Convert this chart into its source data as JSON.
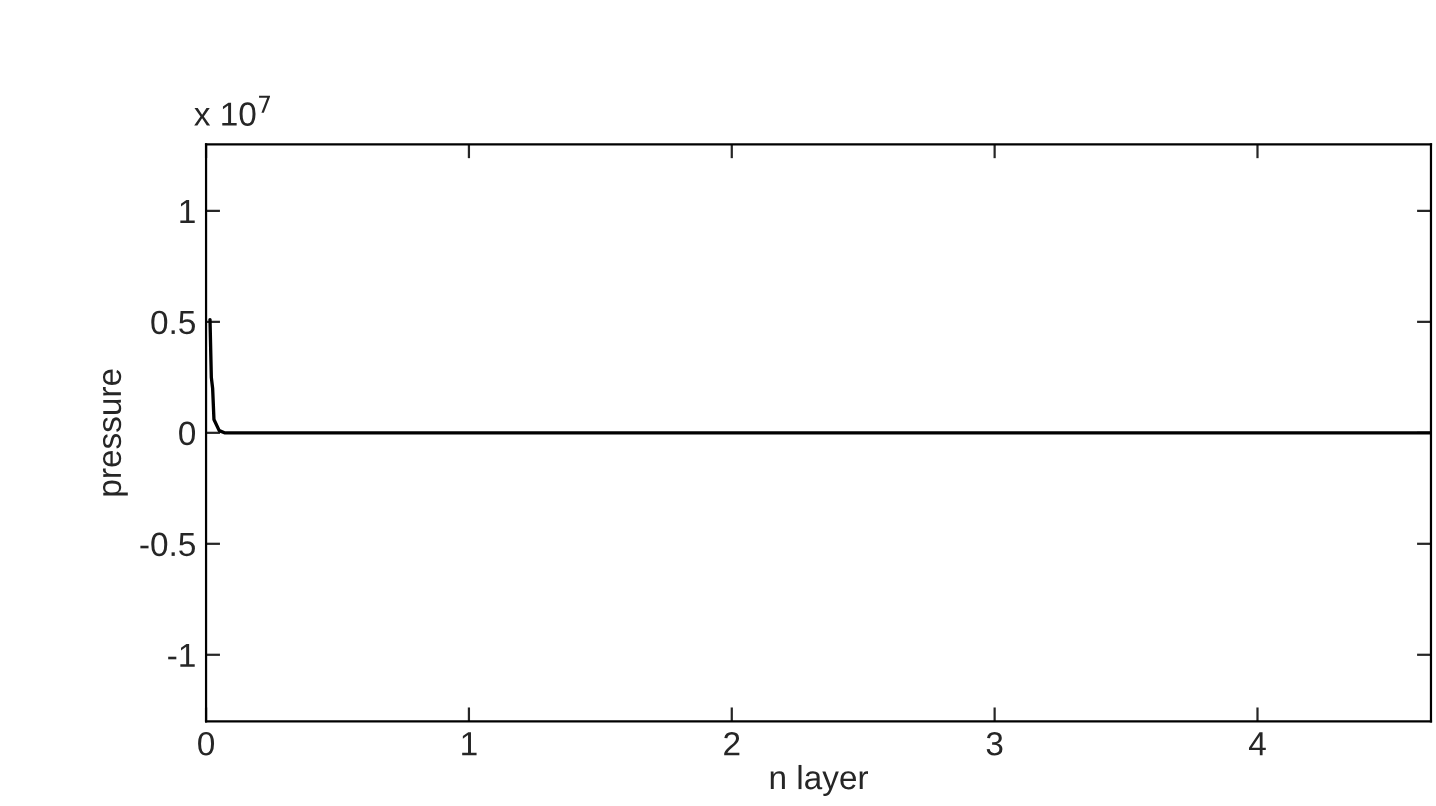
{
  "chart_data": {
    "type": "line",
    "xlabel": "n layer",
    "ylabel": "pressure",
    "annotations": [
      "x 10$^{7}$"
    ],
    "x": [
      0.015,
      0.02,
      0.025,
      0.03,
      0.05,
      0.07,
      4.66
    ],
    "series": [
      {
        "color": "#000000",
        "values": [
          0.51,
          0.25,
          0.2,
          0.06,
          0.01,
          0,
          0
        ]
      }
    ],
    "xlim": [
      0,
      4.66
    ],
    "ylim": [
      -1.3,
      1.3
    ],
    "xticks": [
      0,
      1,
      2,
      3,
      4
    ],
    "yticks": [
      -1,
      -0.5,
      0,
      0.5,
      1
    ],
    "grid": false,
    "legend": false,
    "marker": "none",
    "line_style": "solid"
  }
}
